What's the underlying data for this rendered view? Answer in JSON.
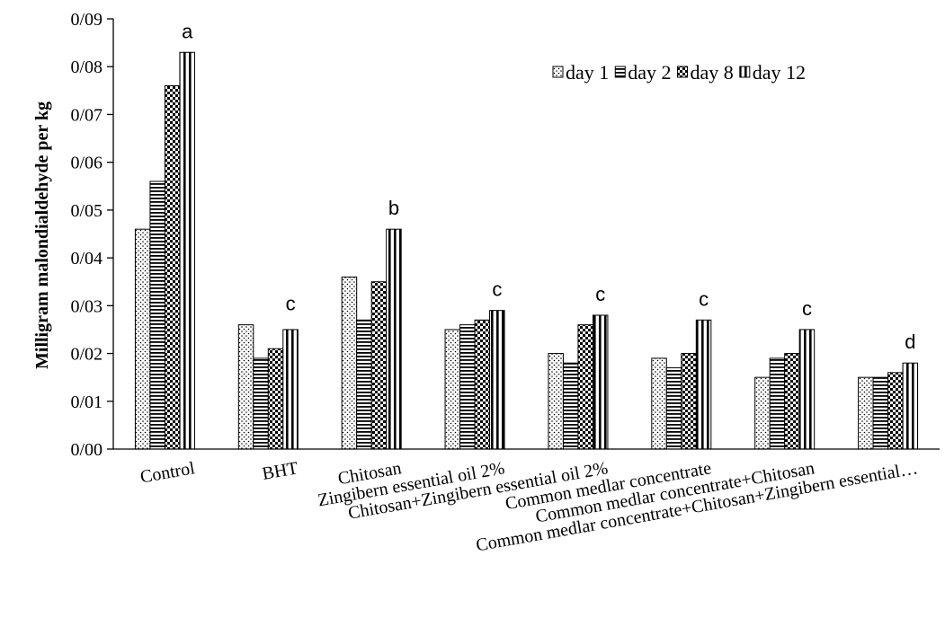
{
  "chart_data": {
    "type": "bar",
    "title": "",
    "xlabel": "",
    "ylabel": "Milligram malondialdehyde per kg",
    "ylim": [
      0,
      0.09
    ],
    "yticks": [
      "0/00",
      "0/01",
      "0/02",
      "0/03",
      "0/04",
      "0/05",
      "0/06",
      "0/07",
      "0/08",
      "0/09"
    ],
    "grid": false,
    "legend_position": "top-right",
    "categories": [
      "Control",
      "BHT",
      "Chitosan",
      "Zingibern essential oil 2%",
      "Chitosan+Zingibern essential oil 2%",
      "Common medlar concentrate",
      "Common medlar concentrate+Chitosan",
      "Common medlar concentrate+Chitosan+Zingibern essential…"
    ],
    "significance_letters": [
      "a",
      "c",
      "b",
      "c",
      "c",
      "c",
      "c",
      "d"
    ],
    "series": [
      {
        "name": "day 1",
        "pattern": "dots",
        "values": [
          0.046,
          0.026,
          0.036,
          0.025,
          0.02,
          0.019,
          0.015,
          0.015
        ]
      },
      {
        "name": "day 2",
        "pattern": "hstripes",
        "values": [
          0.056,
          0.019,
          0.027,
          0.026,
          0.018,
          0.017,
          0.019,
          0.015
        ]
      },
      {
        "name": "day 8",
        "pattern": "checker",
        "values": [
          0.076,
          0.021,
          0.035,
          0.027,
          0.026,
          0.02,
          0.02,
          0.016
        ]
      },
      {
        "name": "day 12",
        "pattern": "vstripes",
        "values": [
          0.083,
          0.025,
          0.046,
          0.029,
          0.028,
          0.027,
          0.025,
          0.018
        ]
      }
    ],
    "colors": {
      "bar_fill": "#ffffff",
      "bar_stroke": "#000000",
      "axis": "#000000"
    }
  }
}
